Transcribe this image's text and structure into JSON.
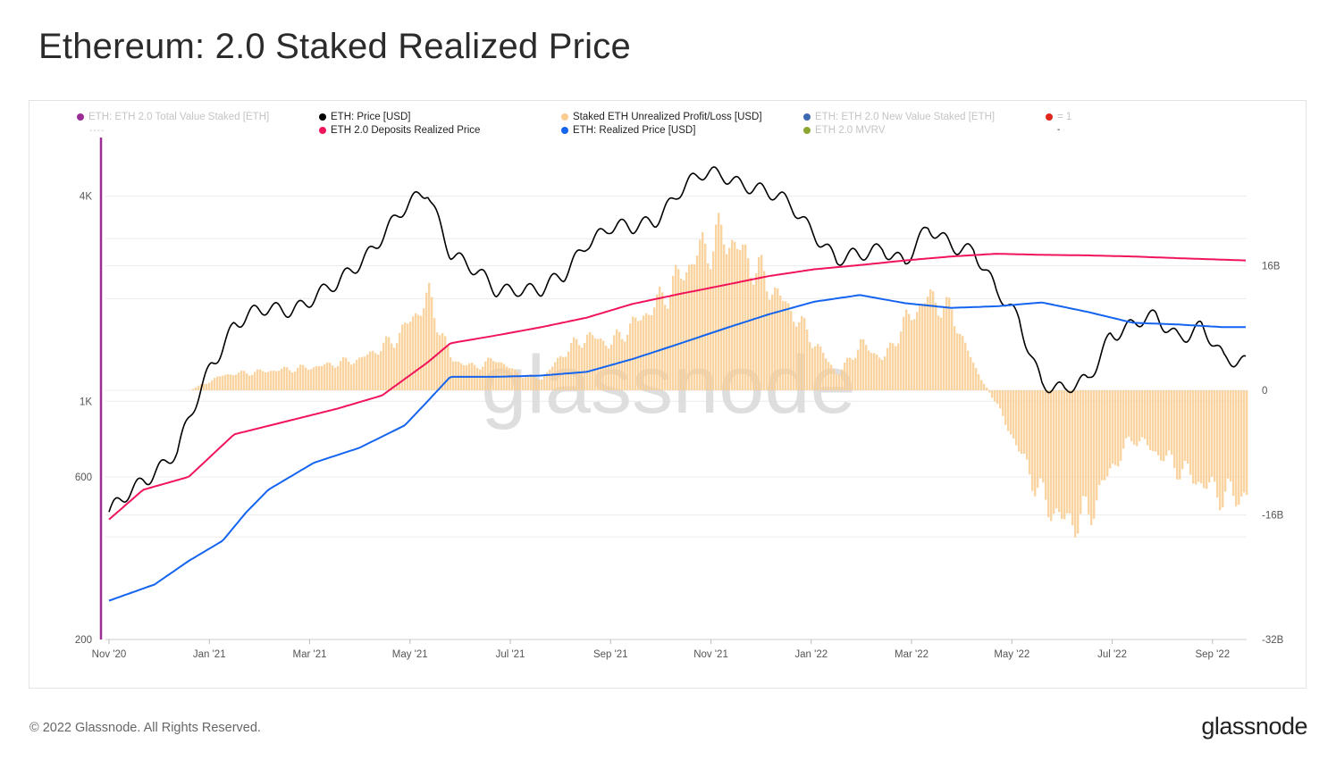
{
  "title": "Ethereum: 2.0 Staked Realized Price",
  "footer": "© 2022 Glassnode. All Rights Reserved.",
  "brand": "glassnode",
  "watermark": "glassnode",
  "legend": [
    {
      "label": "ETH: ETH 2.0 Total Value Staked [ETH]",
      "color": "#9b2d96",
      "active": false,
      "sub": "----"
    },
    {
      "label": "ETH: Price [USD]",
      "color": "#000000",
      "active": true
    },
    {
      "label": "ETH 2.0 Deposits Realized Price",
      "color": "#f0145a",
      "active": true
    },
    {
      "label": "Staked ETH Unrealized Profit/Loss [USD]",
      "color": "#f9cd8f",
      "active": true
    },
    {
      "label": "ETH: Realized Price [USD]",
      "color": "#1464f0",
      "active": true
    },
    {
      "label": "ETH: ETH 2.0 New Value Staked [ETH]",
      "color": "#3d69b1",
      "active": false
    },
    {
      "label": "ETH 2.0 MVRV",
      "color": "#8ba732",
      "active": false
    },
    {
      "label": "= 1",
      "color": "#e1261c",
      "active": false,
      "sub": "-"
    }
  ],
  "chart_data": {
    "type": "line",
    "title": "Ethereum: 2.0 Staked Realized Price",
    "x_ticks": [
      "Nov '20",
      "Jan '21",
      "Mar '21",
      "May '21",
      "Jul '21",
      "Sep '21",
      "Nov '21",
      "Jan '22",
      "Mar '22",
      "May '22",
      "Jul '22",
      "Sep '22"
    ],
    "y_left": {
      "scale": "log",
      "ticks": [
        "200",
        "600",
        "1K",
        "4K"
      ],
      "tick_values": [
        200,
        600,
        1000,
        4000
      ],
      "range": [
        200,
        5800
      ]
    },
    "y_right": {
      "scale": "linear",
      "ticks": [
        "16B",
        "0",
        "-16B",
        "-32B"
      ],
      "tick_values": [
        16,
        0,
        -16,
        -32
      ],
      "unit": "B USD",
      "range": [
        -32,
        32
      ]
    },
    "series": [
      {
        "name": "ETH: Price [USD]",
        "axis": "left",
        "color": "#000000",
        "t": [
          0,
          0.03,
          0.06,
          0.09,
          0.11,
          0.13,
          0.16,
          0.2,
          0.24,
          0.28,
          0.3,
          0.32,
          0.34,
          0.36,
          0.38,
          0.4,
          0.42,
          0.44,
          0.46,
          0.48,
          0.5,
          0.52,
          0.54,
          0.56,
          0.58,
          0.6,
          0.62,
          0.64,
          0.66,
          0.68,
          0.7,
          0.72,
          0.74,
          0.76,
          0.78,
          0.8,
          0.82,
          0.84,
          0.86,
          0.88,
          0.9,
          0.92,
          0.94,
          0.96,
          0.98,
          1.0
        ],
        "values": [
          460,
          600,
          700,
          1300,
          1700,
          1800,
          1900,
          2150,
          3100,
          4180,
          2800,
          2400,
          2100,
          2200,
          2100,
          2300,
          3000,
          3250,
          3150,
          3450,
          4150,
          4520,
          4650,
          4400,
          4000,
          3750,
          3200,
          2550,
          2650,
          2900,
          2550,
          3150,
          2950,
          2800,
          2050,
          1750,
          1150,
          1050,
          1150,
          1600,
          1650,
          1750,
          1580,
          1650,
          1300,
          1330
        ]
      },
      {
        "name": "ETH 2.0 Deposits Realized Price",
        "axis": "left",
        "color": "#f0145a",
        "t": [
          0,
          0.03,
          0.07,
          0.11,
          0.16,
          0.2,
          0.24,
          0.28,
          0.3,
          0.34,
          0.38,
          0.42,
          0.46,
          0.5,
          0.54,
          0.58,
          0.62,
          0.66,
          0.7,
          0.74,
          0.78,
          0.82,
          0.86,
          0.9,
          0.94,
          1.0
        ],
        "values": [
          450,
          550,
          600,
          800,
          880,
          950,
          1040,
          1300,
          1480,
          1560,
          1650,
          1760,
          1930,
          2060,
          2190,
          2330,
          2440,
          2510,
          2590,
          2660,
          2710,
          2690,
          2680,
          2660,
          2630,
          2590
        ]
      },
      {
        "name": "ETH: Realized Price [USD]",
        "axis": "left",
        "color": "#1464f0",
        "t": [
          0,
          0.04,
          0.07,
          0.1,
          0.12,
          0.14,
          0.18,
          0.22,
          0.26,
          0.28,
          0.3,
          0.34,
          0.38,
          0.42,
          0.46,
          0.5,
          0.54,
          0.58,
          0.62,
          0.66,
          0.7,
          0.74,
          0.78,
          0.82,
          0.86,
          0.9,
          0.94,
          0.98
        ],
        "values": [
          260,
          290,
          340,
          390,
          470,
          550,
          660,
          730,
          850,
          1000,
          1180,
          1180,
          1190,
          1220,
          1330,
          1470,
          1630,
          1800,
          1960,
          2050,
          1940,
          1880,
          1900,
          1950,
          1830,
          1700,
          1680,
          1650
        ]
      },
      {
        "name": "Staked ETH Unrealized Profit/Loss [USD]",
        "axis": "right",
        "type": "bar",
        "color": "#f9cd8f",
        "t": [
          0,
          0.07,
          0.1,
          0.14,
          0.18,
          0.22,
          0.25,
          0.27,
          0.28,
          0.3,
          0.32,
          0.34,
          0.36,
          0.38,
          0.4,
          0.42,
          0.44,
          0.46,
          0.48,
          0.5,
          0.52,
          0.54,
          0.56,
          0.58,
          0.6,
          0.62,
          0.64,
          0.66,
          0.68,
          0.7,
          0.72,
          0.74,
          0.76,
          0.78,
          0.8,
          0.82,
          0.84,
          0.86,
          0.88,
          0.9,
          0.92,
          0.94,
          0.96,
          0.98,
          1.0
        ],
        "values": [
          0,
          0,
          2,
          2.5,
          3,
          4,
          6.5,
          10,
          12,
          4,
          3,
          4,
          2,
          1.5,
          5,
          7,
          6,
          8.5,
          11,
          14.5,
          18,
          20,
          17,
          13.5,
          10,
          6,
          2,
          6,
          4,
          9,
          12,
          10,
          3,
          -2,
          -8,
          -14,
          -17,
          -16,
          -10,
          -6,
          -8,
          -10,
          -12,
          -13.5,
          -13.5
        ]
      }
    ]
  }
}
